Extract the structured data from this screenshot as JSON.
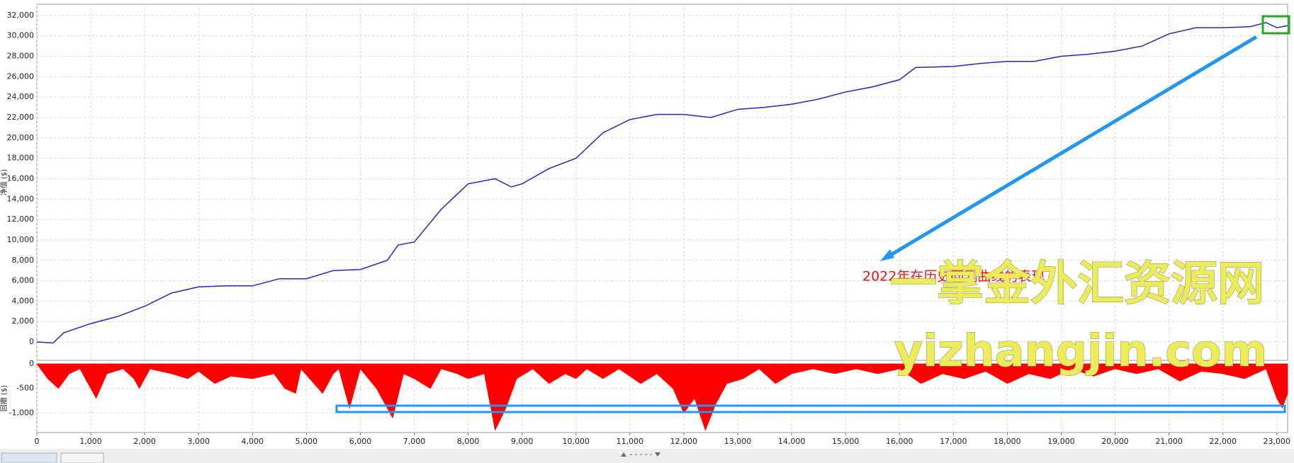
{
  "chart_data": [
    {
      "type": "line",
      "ylabel": "净值 ($)",
      "color": "#2424c8",
      "x": [
        0,
        300,
        500,
        1000,
        1500,
        2000,
        2500,
        3000,
        3500,
        4000,
        4500,
        5000,
        5500,
        6000,
        6500,
        6700,
        7000,
        7500,
        8000,
        8500,
        8800,
        9000,
        9500,
        10000,
        10500,
        11000,
        11500,
        12000,
        12500,
        13000,
        13500,
        14000,
        14500,
        15000,
        15500,
        16000,
        16300,
        17000,
        17500,
        18000,
        18500,
        19000,
        19500,
        20000,
        20500,
        21000,
        21500,
        22000,
        22500,
        22800,
        23000,
        23200
      ],
      "values": [
        0,
        -100,
        900,
        1800,
        2500,
        3500,
        4800,
        5400,
        5500,
        5500,
        6200,
        6200,
        7000,
        7100,
        8000,
        9500,
        9800,
        13000,
        15500,
        16000,
        15200,
        15500,
        17000,
        18000,
        20500,
        21800,
        22300,
        22300,
        22000,
        22800,
        23000,
        23300,
        23800,
        24500,
        25000,
        25700,
        26900,
        27000,
        27300,
        27500,
        27500,
        28000,
        28200,
        28500,
        29000,
        30200,
        30800,
        30800,
        30900,
        31300,
        30800,
        31000
      ],
      "xlim": [
        0,
        23200
      ],
      "ylim": [
        -1800,
        33100
      ],
      "yticks": [
        0,
        {
          "value": 2000,
          "label": "2,000"
        },
        {
          "value": 4000,
          "label": "4,000"
        },
        {
          "value": 6000,
          "label": "6,000"
        },
        {
          "value": 8000,
          "label": "8,000"
        },
        {
          "value": 10000,
          "label": "10,000"
        },
        {
          "value": 12000,
          "label": "12,000"
        },
        {
          "value": 14000,
          "label": "14,000"
        },
        {
          "value": 16000,
          "label": "16,000"
        },
        {
          "value": 18000,
          "label": "18,000"
        },
        {
          "value": 20000,
          "label": "20,000"
        },
        {
          "value": 22000,
          "label": "22,000"
        },
        {
          "value": 24000,
          "label": "24,000"
        },
        {
          "value": 26000,
          "label": "26,000"
        },
        {
          "value": 28000,
          "label": "28,000"
        },
        {
          "value": 30000,
          "label": "30,000"
        },
        {
          "value": 32000,
          "label": "32,000"
        }
      ],
      "grid": true,
      "annotations": [
        "2022年在历史回测曲线的表现",
        "一掌金外汇资源网",
        "yizhangjin.com"
      ]
    },
    {
      "type": "area",
      "ylabel": "回撤 ($)",
      "color": "#ff0000",
      "x": [
        0,
        200,
        400,
        600,
        800,
        1100,
        1300,
        1600,
        1800,
        1900,
        2100,
        2500,
        2800,
        3000,
        3300,
        3600,
        4000,
        4400,
        4600,
        4800,
        4900,
        5300,
        5500,
        5600,
        5800,
        6000,
        6300,
        6600,
        6800,
        7000,
        7300,
        7500,
        7800,
        8000,
        8300,
        8500,
        8700,
        8900,
        9200,
        9500,
        9800,
        10000,
        10200,
        10500,
        10800,
        11200,
        11500,
        11800,
        12000,
        12200,
        12400,
        12600,
        12800,
        13100,
        13400,
        13700,
        14000,
        14400,
        14800,
        15200,
        15600,
        16000,
        16400,
        16800,
        17200,
        17600,
        18000,
        18400,
        18800,
        19200,
        19600,
        20000,
        20400,
        20800,
        21200,
        21600,
        22000,
        22400,
        22800,
        23000,
        23100,
        23200
      ],
      "values": [
        0,
        -300,
        -500,
        -200,
        -100,
        -700,
        -200,
        -100,
        -300,
        -500,
        -100,
        -200,
        -300,
        -150,
        -400,
        -250,
        -300,
        -200,
        -500,
        -600,
        -100,
        -600,
        -200,
        -100,
        -900,
        -100,
        -500,
        -1100,
        -200,
        -300,
        -500,
        -100,
        -200,
        -300,
        -200,
        -1350,
        -900,
        -300,
        -100,
        -400,
        -200,
        -300,
        -100,
        -300,
        -100,
        -400,
        -200,
        -500,
        -1000,
        -700,
        -1350,
        -800,
        -400,
        -300,
        -100,
        -400,
        -200,
        -100,
        -200,
        -100,
        -200,
        -100,
        -400,
        -200,
        -300,
        -150,
        -400,
        -200,
        -300,
        -100,
        -250,
        -100,
        -200,
        -100,
        -350,
        -150,
        -200,
        -300,
        -100,
        -700,
        -900,
        -600
      ],
      "xlim": [
        0,
        23200
      ],
      "ylim": [
        -1400,
        0
      ],
      "yticks": [
        0,
        -500,
        {
          "value": -1000,
          "label": "-1,000"
        }
      ],
      "xticks": [
        0,
        {
          "value": 1000,
          "label": "1,000"
        },
        {
          "value": 2000,
          "label": "2,000"
        },
        {
          "value": 3000,
          "label": "3,000"
        },
        {
          "value": 4000,
          "label": "4,000"
        },
        {
          "value": 5000,
          "label": "5,000"
        },
        {
          "value": 6000,
          "label": "6,000"
        },
        {
          "value": 7000,
          "label": "7,000"
        },
        {
          "value": 8000,
          "label": "8,000"
        },
        {
          "value": 9000,
          "label": "9,000"
        },
        {
          "value": 10000,
          "label": "10,000"
        },
        {
          "value": 11000,
          "label": "11,000"
        },
        {
          "value": 12000,
          "label": "12,000"
        },
        {
          "value": 13000,
          "label": "13,000"
        },
        {
          "value": 14000,
          "label": "14,000"
        },
        {
          "value": 15000,
          "label": "15,000"
        },
        {
          "value": 16000,
          "label": "16,000"
        },
        {
          "value": 17000,
          "label": "17,000"
        },
        {
          "value": 18000,
          "label": "18,000"
        },
        {
          "value": 19000,
          "label": "19,000"
        },
        {
          "value": 20000,
          "label": "20,000"
        },
        {
          "value": 21000,
          "label": "21,000"
        },
        {
          "value": 22000,
          "label": "22,000"
        },
        {
          "value": 23000,
          "label": "23,000"
        }
      ],
      "grid": true
    }
  ]
}
